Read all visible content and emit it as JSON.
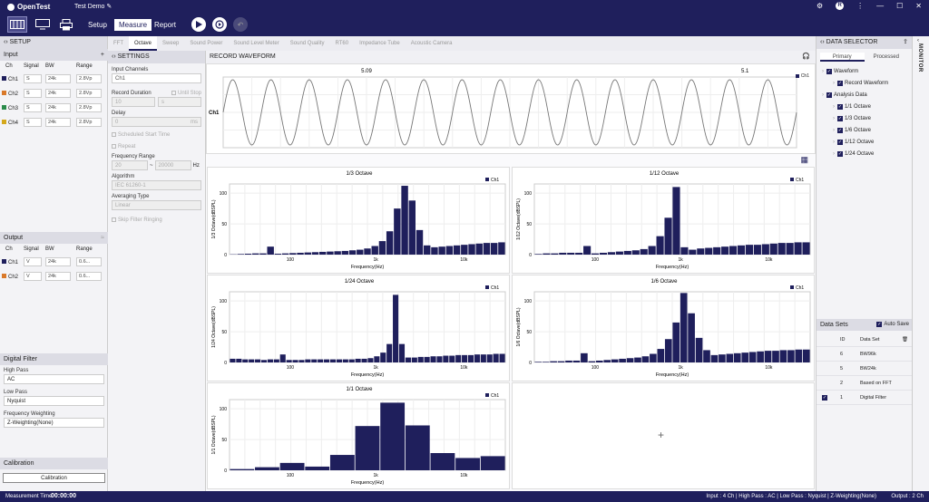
{
  "app": {
    "name": "OpenTest",
    "project": "Test Demo"
  },
  "modes": [
    "Setup",
    "Measure",
    "Report"
  ],
  "active_mode": "Measure",
  "setup": {
    "title": "SETUP",
    "input": {
      "title": "Input",
      "columns": [
        "Ch",
        "Signal",
        "BW",
        "Range"
      ],
      "rows": [
        {
          "ch": "Ch1",
          "signal": "S",
          "bw": "24k",
          "range": "2.8Vp",
          "color": "#1f1f5c"
        },
        {
          "ch": "Ch2",
          "signal": "S",
          "bw": "24k",
          "range": "2.8Vp",
          "color": "#d9792a"
        },
        {
          "ch": "Ch3",
          "signal": "S",
          "bw": "24k",
          "range": "2.8Vp",
          "color": "#2a8a4a"
        },
        {
          "ch": "Ch4",
          "signal": "S",
          "bw": "24k",
          "range": "2.8Vp",
          "color": "#d4a81c"
        }
      ]
    },
    "output": {
      "title": "Output",
      "columns": [
        "Ch",
        "Signal",
        "BW",
        "Range"
      ],
      "rows": [
        {
          "ch": "Ch1",
          "signal": "V",
          "bw": "24k",
          "range": "0.6...",
          "color": "#1f1f5c"
        },
        {
          "ch": "Ch2",
          "signal": "V",
          "bw": "24k",
          "range": "0.6...",
          "color": "#d9792a"
        }
      ]
    },
    "digital_filter": {
      "title": "Digital Filter",
      "high_pass_label": "High Pass",
      "high_pass": "AC",
      "low_pass_label": "Low Pass",
      "low_pass": "Nyquist",
      "weighting_label": "Frequency Weighting",
      "weighting": "Z-Weighting(None)"
    },
    "calibration": {
      "title": "Calibration",
      "button": "Calibration"
    }
  },
  "tabs": [
    "FFT",
    "Octave",
    "Sweep",
    "Sound Power",
    "Sound Level Meter",
    "Sound Quality",
    "RT60",
    "Impedance Tube",
    "Acoustic Camera"
  ],
  "active_tab": "Octave",
  "settings": {
    "title": "SETTINGS",
    "input_channels_label": "Input Channels",
    "input_channels": "Ch1",
    "record_duration_label": "Record Duration",
    "until_stop": "Until Stop",
    "record_duration_value": "10",
    "record_duration_unit": "s",
    "delay_label": "Delay",
    "delay_value": "0",
    "delay_unit": "ms",
    "scheduled_label": "Scheduled Start Time",
    "repeat_label": "Repeat",
    "freq_range_label": "Frequency Range",
    "freq_min": "20",
    "freq_max": "20000",
    "freq_unit": "Hz",
    "algorithm_label": "Algorithm",
    "algorithm": "IEC 61260-1",
    "averaging_label": "Averaging Type",
    "averaging": "Linear",
    "skip_ringing_label": "Skip Filter Ringing"
  },
  "workspace": {
    "record_title": "RECORD WAVEFORM",
    "wave_time_labels": [
      "5.09",
      "5.1"
    ],
    "wave_channel": "Ch1",
    "legend": "Ch1"
  },
  "chart_data": [
    {
      "type": "bar",
      "title": "1/3 Octave",
      "xlabel": "Frequency(Hz)",
      "ylabel": "1/3 Octave(dBSPL)",
      "yticks": [
        0,
        50,
        100
      ],
      "xticks": [
        "100",
        "1k",
        "10k"
      ],
      "series": [
        {
          "name": "Ch1",
          "values": [
            0.5,
            1,
            1.5,
            2,
            2,
            13,
            1.5,
            2,
            2.5,
            3,
            3.5,
            4,
            4.5,
            5,
            5.5,
            6,
            7,
            8,
            10,
            14,
            22,
            38,
            75,
            112,
            88,
            40,
            15,
            12,
            13,
            14,
            15,
            16,
            17,
            18,
            19,
            19,
            20
          ]
        }
      ]
    },
    {
      "type": "bar",
      "title": "1/12 Octave",
      "xlabel": "Frequency(Hz)",
      "ylabel": "1/12 Octave(dBSPL)",
      "yticks": [
        0,
        50,
        100
      ],
      "xticks": [
        "100",
        "1k",
        "10k"
      ],
      "series": [
        {
          "name": "Ch1",
          "values": [
            1,
            2,
            2,
            3,
            3,
            3,
            14,
            2,
            3,
            4,
            5,
            6,
            7,
            9,
            14,
            30,
            60,
            110,
            12,
            8,
            10,
            11,
            12,
            13,
            14,
            15,
            16,
            16,
            17,
            18,
            19,
            19,
            20,
            20
          ]
        }
      ]
    },
    {
      "type": "bar",
      "title": "1/24 Octave",
      "xlabel": "Frequency(Hz)",
      "ylabel": "1/24 Octave(dBSPL)",
      "yticks": [
        0,
        50,
        100
      ],
      "xticks": [
        "100",
        "1k",
        "10k"
      ],
      "series": [
        {
          "name": "Ch1",
          "values": [
            6,
            6,
            5,
            5,
            5,
            4,
            5,
            5,
            13,
            4,
            4,
            4,
            5,
            5,
            5,
            5,
            5,
            5,
            5,
            5,
            6,
            6,
            7,
            10,
            16,
            30,
            110,
            30,
            8,
            8,
            9,
            9,
            10,
            10,
            11,
            11,
            12,
            12,
            12,
            13,
            13,
            13,
            14,
            14
          ]
        }
      ]
    },
    {
      "type": "bar",
      "title": "1/6 Octave",
      "xlabel": "Frequency(Hz)",
      "ylabel": "1/6 Octave(dBSPL)",
      "yticks": [
        0,
        50,
        100
      ],
      "xticks": [
        "100",
        "1k",
        "10k"
      ],
      "series": [
        {
          "name": "Ch1",
          "values": [
            1,
            1,
            2,
            2,
            3,
            3,
            15,
            2,
            3,
            4,
            5,
            6,
            7,
            8,
            10,
            14,
            22,
            38,
            65,
            113,
            80,
            40,
            20,
            12,
            13,
            14,
            15,
            16,
            17,
            18,
            19,
            19,
            20,
            20,
            21,
            21
          ]
        }
      ]
    },
    {
      "type": "bar",
      "title": "1/1 Octave",
      "xlabel": "Frequency(Hz)",
      "ylabel": "1/1 Octave(dBSPL)",
      "yticks": [
        0,
        50,
        100
      ],
      "xticks": [
        "100",
        "1k",
        "10k"
      ],
      "series": [
        {
          "name": "Ch1",
          "values": [
            2,
            5,
            12,
            6,
            25,
            72,
            110,
            73,
            28,
            20,
            23
          ]
        }
      ]
    }
  ],
  "selector": {
    "title": "DATA SELECTOR",
    "subtabs": [
      "Primary",
      "Processed"
    ],
    "tree": [
      {
        "label": "Waveform",
        "level": 0
      },
      {
        "label": "Record Waveform",
        "level": 1
      },
      {
        "label": "Analysis Data",
        "level": 0
      },
      {
        "label": "1/1 Octave",
        "level": 1
      },
      {
        "label": "1/3 Octave",
        "level": 1
      },
      {
        "label": "1/6 Octave",
        "level": 1
      },
      {
        "label": "1/12 Octave",
        "level": 1
      },
      {
        "label": "1/24 Octave",
        "level": 1
      }
    ],
    "datasets_title": "Data Sets",
    "auto_save": "Auto Save",
    "ds_columns": [
      "ID",
      "Data Set"
    ],
    "datasets": [
      {
        "id": "6",
        "name": "BW96k"
      },
      {
        "id": "5",
        "name": "BW24k"
      },
      {
        "id": "2",
        "name": "Based on FFT"
      },
      {
        "id": "1",
        "name": "Digital Filter"
      }
    ]
  },
  "monitor": "MONITOR",
  "status": {
    "mt_label": "Measurement Time",
    "mt_value": "00:00:00",
    "right": "Input : 4 Ch | High Pass : AC | Low Pass : Nyquist | Z-Weighting(None)",
    "output": "Output : 2 Ch"
  }
}
